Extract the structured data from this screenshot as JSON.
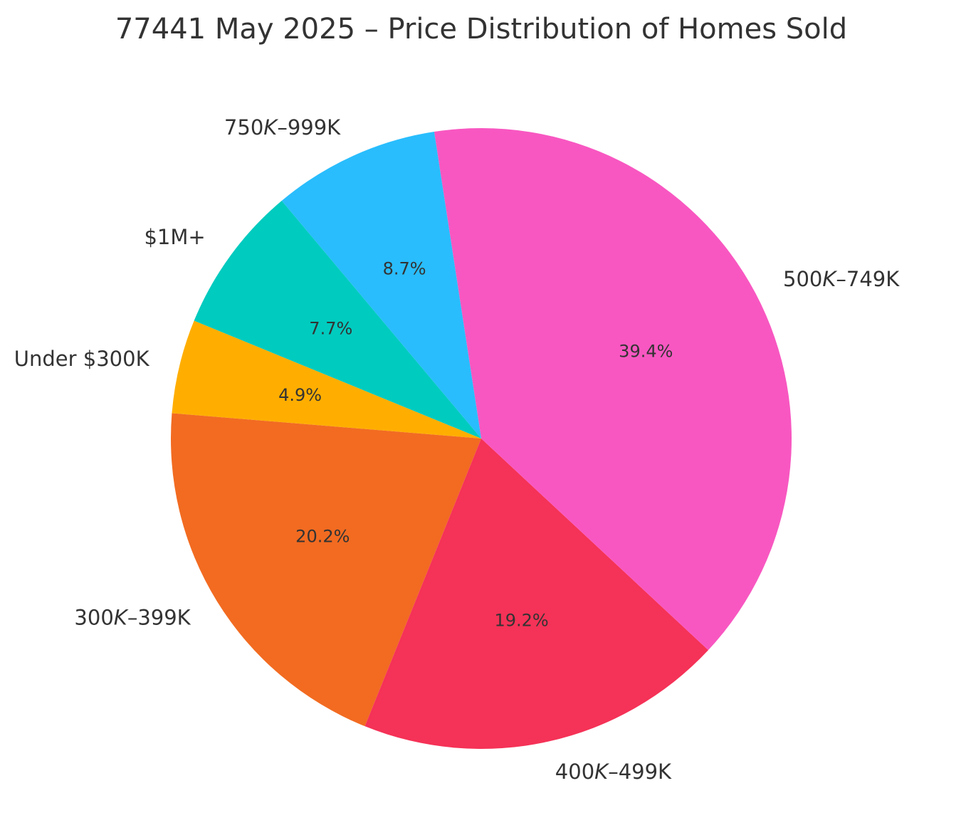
{
  "chart_data": {
    "type": "pie",
    "title": "77441 May 2025 – Price Distribution of Homes Sold",
    "categories": [
      "Under $300K",
      "300K–399K",
      "400K–499K",
      "500K–749K",
      "750K–999K",
      "$1M+"
    ],
    "label_parts": [
      {
        "prefix": "Under $300K",
        "italic": "",
        "suffix": ""
      },
      {
        "prefix": "300",
        "italic": "K",
        "suffix": "–399K"
      },
      {
        "prefix": "400",
        "italic": "K",
        "suffix": "–499K"
      },
      {
        "prefix": "500",
        "italic": "K",
        "suffix": "–749K"
      },
      {
        "prefix": "750",
        "italic": "K",
        "suffix": "–999K"
      },
      {
        "prefix": "$1M+",
        "italic": "",
        "suffix": ""
      }
    ],
    "values": [
      4.9,
      20.2,
      19.2,
      39.4,
      8.7,
      7.7
    ],
    "percent_labels": [
      "4.9%",
      "20.2%",
      "19.2%",
      "39.4%",
      "8.7%",
      "7.7%"
    ],
    "colors": [
      "#FFAE00",
      "#F26B21",
      "#F53257",
      "#F857C1",
      "#29BDFD",
      "#00CBBF"
    ],
    "start_angle_deg": 157.7,
    "direction": "counterclockwise",
    "legend": "none"
  }
}
